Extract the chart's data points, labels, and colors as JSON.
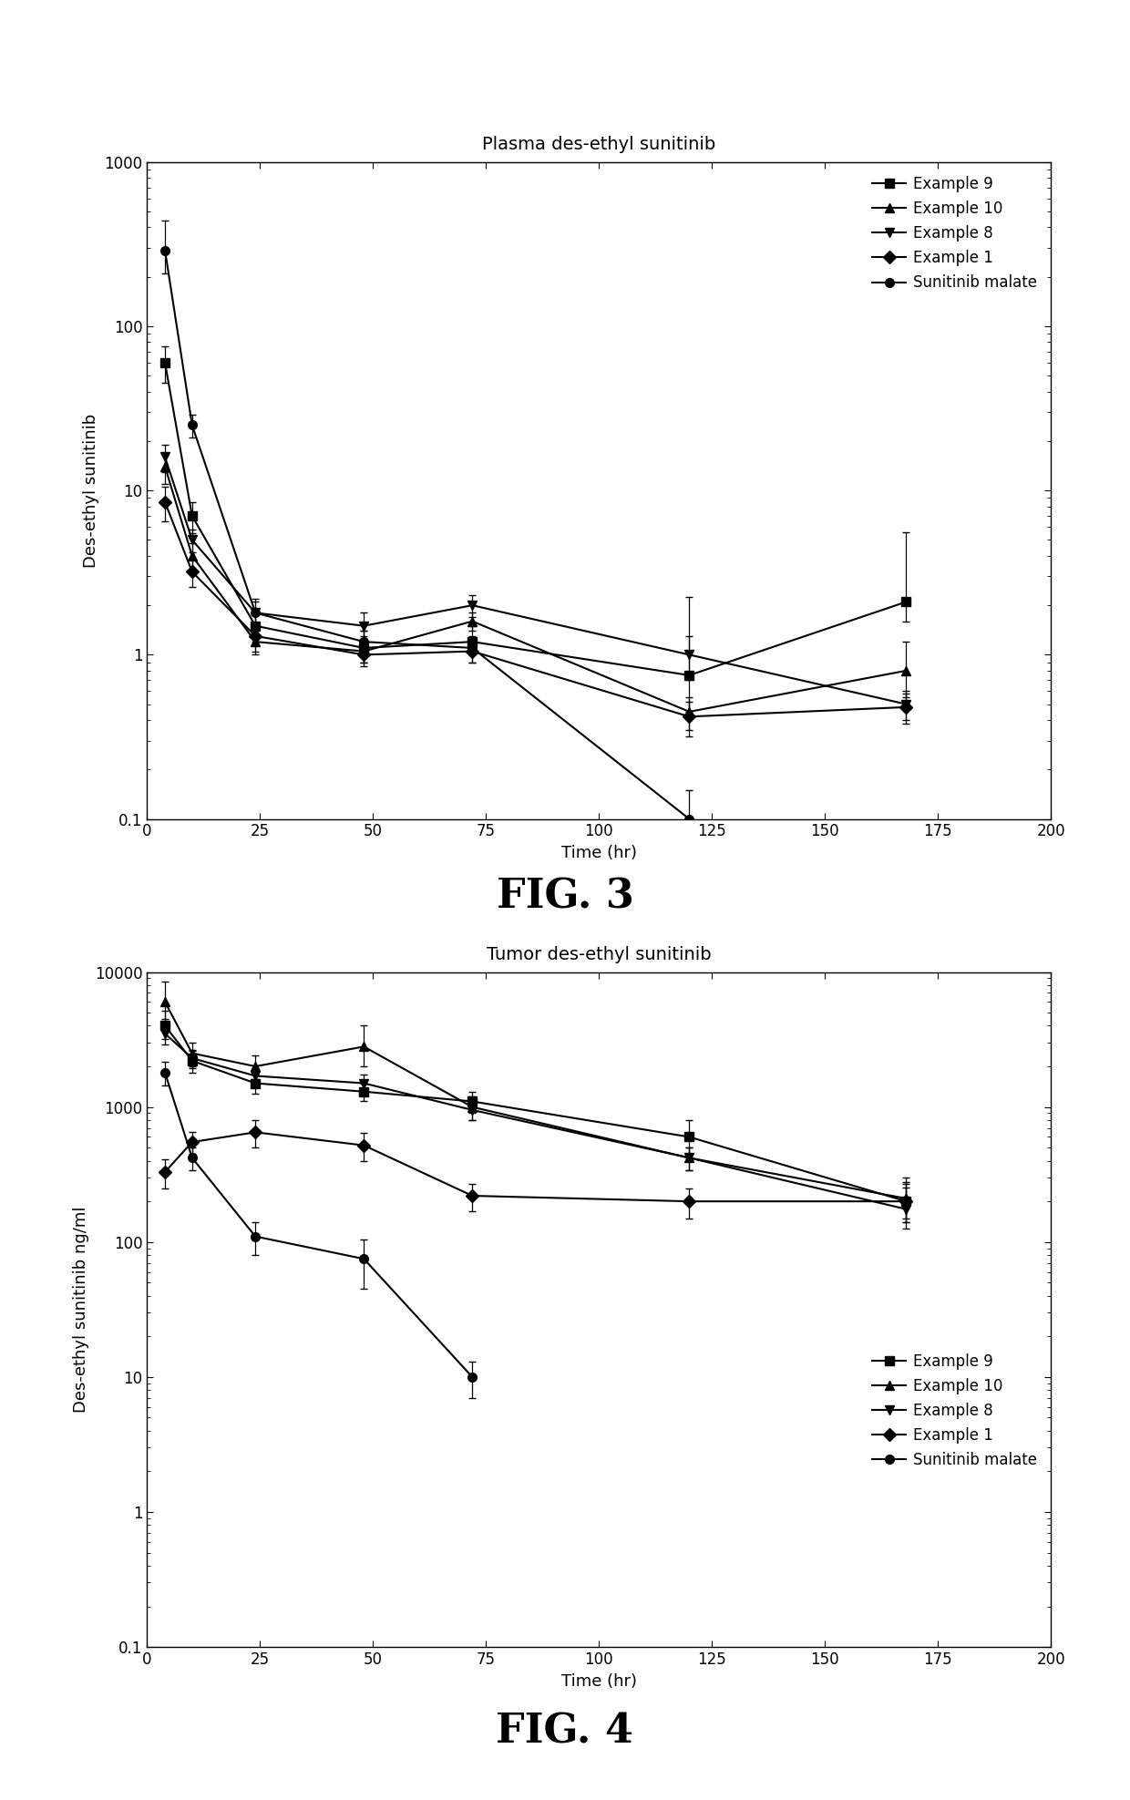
{
  "fig3_title": "Plasma des-ethyl sunitinib",
  "fig3_ylabel": "Des-ethyl sunitinib",
  "fig3_xlabel": "Time (hr)",
  "fig3_ylim": [
    0.1,
    1000
  ],
  "fig3_xlim": [
    0,
    200
  ],
  "fig3_xticks": [
    0,
    25,
    50,
    75,
    100,
    125,
    150,
    175,
    200
  ],
  "fig3_xticklabels": [
    "0",
    "25",
    "50",
    "75",
    "100",
    "125",
    "150",
    "175",
    "200"
  ],
  "fig3_caption": "FIG. 3",
  "fig4_title": "Tumor des-ethyl sunitinib",
  "fig4_ylabel": "Des-ethyl sunitinib ng/ml",
  "fig4_xlabel": "Time (hr)",
  "fig4_ylim": [
    0.1,
    10000
  ],
  "fig4_xlim": [
    0,
    200
  ],
  "fig4_xticks": [
    0,
    25,
    50,
    75,
    100,
    125,
    150,
    175,
    200
  ],
  "fig4_xticklabels": [
    "0",
    "25",
    "50",
    "75",
    "100",
    "125",
    "150",
    "175",
    "200"
  ],
  "fig4_caption": "FIG. 4",
  "series": {
    "Example 9": {
      "marker": "s",
      "fig3_x": [
        4,
        10,
        24,
        48,
        72,
        120,
        168
      ],
      "fig3_y": [
        60,
        7.0,
        1.5,
        1.1,
        1.2,
        0.75,
        2.1
      ],
      "fig3_yerr_lo": [
        15,
        1.5,
        0.3,
        0.2,
        0.2,
        0.3,
        0.5
      ],
      "fig3_yerr_hi": [
        15,
        1.5,
        0.3,
        0.3,
        0.3,
        1.5,
        3.5
      ],
      "fig4_x": [
        4,
        10,
        24,
        48,
        72,
        120,
        168
      ],
      "fig4_y": [
        4000,
        2200,
        1500,
        1300,
        1100,
        600,
        200
      ],
      "fig4_yerr_lo": [
        800,
        400,
        250,
        200,
        200,
        200,
        60
      ],
      "fig4_yerr_hi": [
        1200,
        400,
        250,
        200,
        200,
        200,
        100
      ]
    },
    "Example 10": {
      "marker": "^",
      "fig3_x": [
        4,
        10,
        24,
        48,
        72,
        120,
        168
      ],
      "fig3_y": [
        14,
        4.0,
        1.2,
        1.05,
        1.6,
        0.45,
        0.8
      ],
      "fig3_yerr_lo": [
        3,
        0.8,
        0.2,
        0.15,
        0.2,
        0.1,
        0.25
      ],
      "fig3_yerr_hi": [
        3,
        0.8,
        0.2,
        0.15,
        0.2,
        0.1,
        0.4
      ],
      "fig4_x": [
        4,
        10,
        24,
        48,
        72,
        120,
        168
      ],
      "fig4_y": [
        6000,
        2500,
        2000,
        2800,
        1000,
        420,
        210
      ],
      "fig4_yerr_lo": [
        1500,
        500,
        400,
        800,
        200,
        80,
        60
      ],
      "fig4_yerr_hi": [
        2500,
        500,
        400,
        1200,
        200,
        80,
        60
      ]
    },
    "Example 8": {
      "marker": "v",
      "fig3_x": [
        4,
        10,
        24,
        48,
        72,
        120,
        168
      ],
      "fig3_y": [
        16,
        5.0,
        1.8,
        1.5,
        2.0,
        1.0,
        0.5
      ],
      "fig3_yerr_lo": [
        3,
        0.8,
        0.3,
        0.2,
        0.3,
        0.3,
        0.1
      ],
      "fig3_yerr_hi": [
        3,
        0.8,
        0.3,
        0.3,
        0.3,
        0.3,
        0.1
      ],
      "fig4_x": [
        4,
        10,
        24,
        48,
        72,
        120,
        168
      ],
      "fig4_y": [
        3500,
        2300,
        1700,
        1500,
        950,
        420,
        175
      ],
      "fig4_yerr_lo": [
        600,
        350,
        250,
        250,
        150,
        80,
        50
      ],
      "fig4_yerr_hi": [
        600,
        350,
        250,
        250,
        150,
        80,
        80
      ]
    },
    "Example 1": {
      "marker": "D",
      "fig3_x": [
        4,
        10,
        24,
        48,
        72,
        120,
        168
      ],
      "fig3_y": [
        8.5,
        3.2,
        1.3,
        1.0,
        1.05,
        0.42,
        0.48
      ],
      "fig3_yerr_lo": [
        2,
        0.6,
        0.25,
        0.15,
        0.15,
        0.1,
        0.1
      ],
      "fig3_yerr_hi": [
        2,
        0.6,
        0.25,
        0.15,
        0.15,
        0.1,
        0.1
      ],
      "fig4_x": [
        4,
        10,
        24,
        48,
        72,
        120,
        168
      ],
      "fig4_y": [
        330,
        550,
        650,
        520,
        220,
        200,
        200
      ],
      "fig4_yerr_lo": [
        80,
        100,
        150,
        120,
        50,
        50,
        60
      ],
      "fig4_yerr_hi": [
        80,
        100,
        150,
        120,
        50,
        50,
        80
      ]
    },
    "Sunitinib malate": {
      "marker": "o",
      "fig3_x": [
        4,
        10,
        24,
        48,
        72,
        120
      ],
      "fig3_y": [
        290,
        25,
        1.8,
        1.2,
        1.1,
        0.1
      ],
      "fig3_yerr_lo": [
        80,
        4,
        0.4,
        0.2,
        0.2,
        0.05
      ],
      "fig3_yerr_hi": [
        150,
        4,
        0.4,
        0.2,
        0.2,
        0.05
      ],
      "fig4_x": [
        4,
        10,
        24,
        48,
        72
      ],
      "fig4_y": [
        1800,
        420,
        110,
        75,
        10
      ],
      "fig4_yerr_lo": [
        350,
        80,
        30,
        30,
        3
      ],
      "fig4_yerr_hi": [
        350,
        80,
        30,
        30,
        3
      ]
    }
  },
  "legend_order": [
    "Example 9",
    "Example 10",
    "Example 8",
    "Example 1",
    "Sunitinib malate"
  ],
  "marker_size": 7,
  "line_width": 1.5,
  "color": "#000000",
  "background": "#ffffff"
}
